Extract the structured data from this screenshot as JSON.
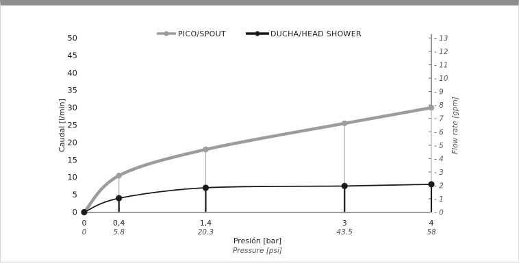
{
  "chart_data": {
    "type": "line",
    "x": [
      0,
      0.4,
      1.4,
      3,
      4
    ],
    "x_tick_labels": [
      "0",
      "0,4",
      "1,4",
      "3",
      "4"
    ],
    "x_secondary_tick_labels": [
      "0",
      "5.8",
      "20.3",
      "43.5",
      "58"
    ],
    "xlabel": "Presión [bar]",
    "xlabel_secondary": "Pressure [psi]",
    "ylabel": "Caudal [l/min]",
    "ylabel_right": "Flow rate [gpm]",
    "ylim": [
      0,
      50
    ],
    "yticks": [
      0,
      5,
      10,
      15,
      20,
      25,
      30,
      35,
      40,
      45,
      50
    ],
    "ylim_right": [
      0,
      13
    ],
    "yticks_right": [
      0,
      1,
      2,
      3,
      4,
      5,
      6,
      7,
      8,
      9,
      10,
      11,
      12,
      13
    ],
    "yticks_right_labels": [
      "0",
      "1",
      "2",
      "3",
      "4",
      "5",
      "6",
      "7",
      "8",
      "9",
      "10",
      "11",
      "12",
      "13"
    ],
    "legend_position": "top-center",
    "series": [
      {
        "name": "PICO/SPOUT",
        "color": "#9c9c9c",
        "values": [
          0,
          10.5,
          18,
          25.5,
          30
        ]
      },
      {
        "name": "DUCHA/HEAD SHOWER",
        "color": "#1a1a1a",
        "values": [
          0,
          4,
          7,
          7.5,
          8
        ]
      }
    ]
  }
}
